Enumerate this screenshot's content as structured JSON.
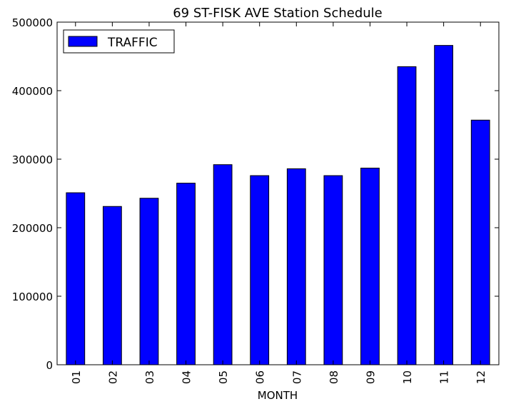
{
  "chart_data": {
    "type": "bar",
    "title": "69 ST-FISK AVE Station Schedule",
    "xlabel": "MONTH",
    "ylabel": "",
    "categories": [
      "01",
      "02",
      "03",
      "04",
      "05",
      "06",
      "07",
      "08",
      "09",
      "10",
      "11",
      "12"
    ],
    "series": [
      {
        "name": "TRAFFIC",
        "color": "#0000ff",
        "values": [
          251000,
          231000,
          243000,
          265000,
          292000,
          276000,
          286000,
          276000,
          287000,
          435000,
          466000,
          357000
        ]
      }
    ],
    "ylim": [
      0,
      500000
    ],
    "yticks": [
      0,
      100000,
      200000,
      300000,
      400000,
      500000
    ],
    "ytick_labels": [
      "0",
      "100000",
      "200000",
      "300000",
      "400000",
      "500000"
    ],
    "grid": false,
    "legend_position": "top-left"
  }
}
